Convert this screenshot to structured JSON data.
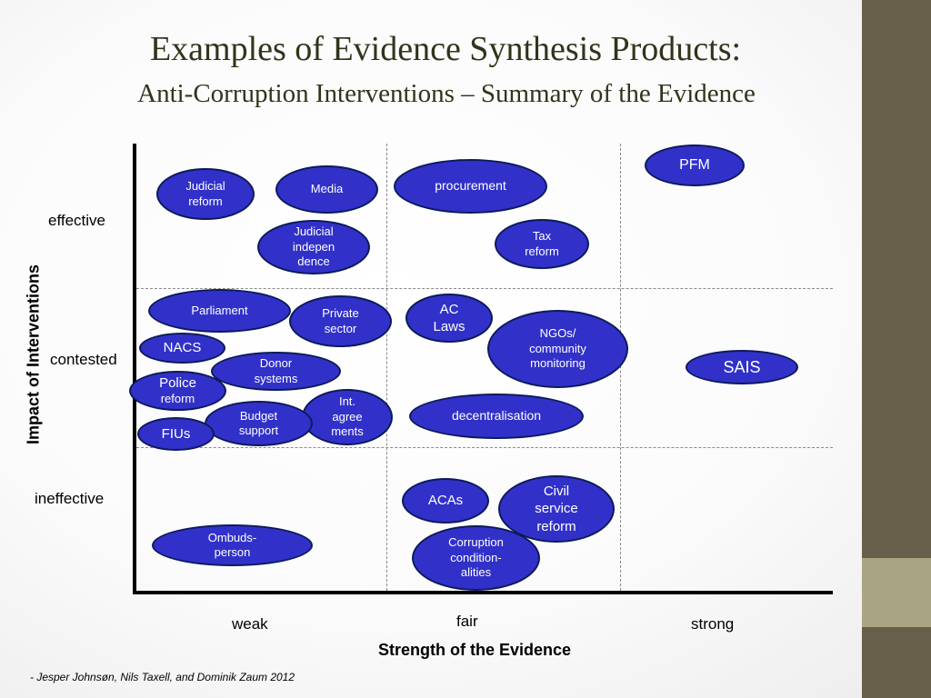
{
  "title": "Examples of Evidence Synthesis Products:",
  "subtitle": "Anti-Corruption Interventions – Summary of the Evidence",
  "y_axis": {
    "title": "Impact of Interventions",
    "levels": [
      "effective",
      "contested",
      "ineffective"
    ]
  },
  "x_axis": {
    "title": "Strength of the Evidence",
    "levels": [
      "weak",
      "fair",
      "strong"
    ]
  },
  "citation": "- Jesper Johnsøn, Nils Taxell, and Dominik Zaum 2012",
  "nodes": {
    "judicial_reform": "Judicial\nreform",
    "media": "Media",
    "procurement": "procurement",
    "pfm": "PFM",
    "judicial_independence": "Judicial\nindepen\ndence",
    "tax_reform": "Tax\nreform",
    "parliament": "Parliament",
    "private_sector": "Private\nsector",
    "ac_laws": "AC\nLaws",
    "ngos": "NGOs/\ncommunity\nmonitoring",
    "nacs": "NACS",
    "donor_systems": "Donor\nsystems",
    "sais": "SAIS",
    "police_reform_1": "Police",
    "police_reform_2": "reform",
    "int_agreements": "Int.\nagree\nments",
    "decentralisation": "decentralisation",
    "budget_support": "Budget\nsupport",
    "fius": "FIUs",
    "acas": "ACAs",
    "civil_service_reform": "Civil\nservice\nreform",
    "ombudsperson": "Ombuds-\nperson",
    "corruption_conditionalities": "Corruption\ncondition-\nalities"
  },
  "colors": {
    "node_fill": "#3131c9",
    "node_border": "#0c1a5a",
    "sidebar": "#675f4a",
    "sidebar_accent": "#a9a582"
  }
}
